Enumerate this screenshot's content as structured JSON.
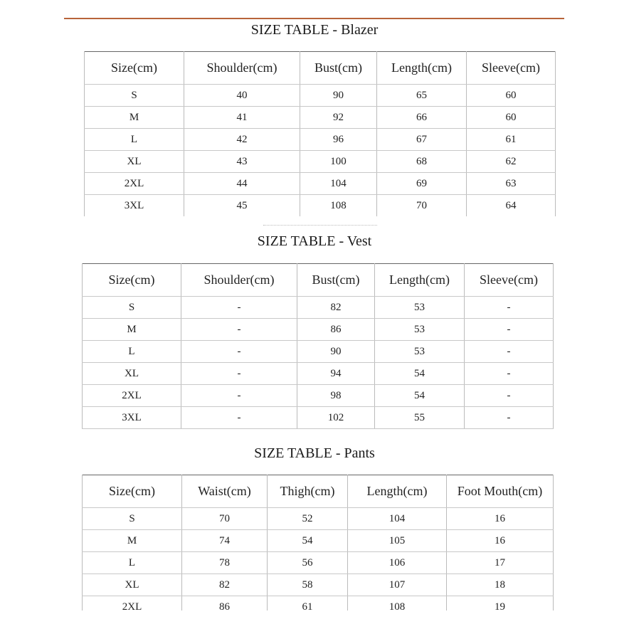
{
  "tables": [
    {
      "title": "SIZE TABLE - Blazer",
      "headers": [
        "Size(cm)",
        "Shoulder(cm)",
        "Bust(cm)",
        "Length(cm)",
        "Sleeve(cm)"
      ],
      "rows": [
        [
          "S",
          "40",
          "90",
          "65",
          "60"
        ],
        [
          "M",
          "41",
          "92",
          "66",
          "60"
        ],
        [
          "L",
          "42",
          "96",
          "67",
          "61"
        ],
        [
          "XL",
          "43",
          "100",
          "68",
          "62"
        ],
        [
          "2XL",
          "44",
          "104",
          "69",
          "63"
        ],
        [
          "3XL",
          "45",
          "108",
          "70",
          "64"
        ]
      ]
    },
    {
      "title": "SIZE TABLE - Vest",
      "headers": [
        "Size(cm)",
        "Shoulder(cm)",
        "Bust(cm)",
        "Length(cm)",
        "Sleeve(cm)"
      ],
      "rows": [
        [
          "S",
          "-",
          "82",
          "53",
          "-"
        ],
        [
          "M",
          "-",
          "86",
          "53",
          "-"
        ],
        [
          "L",
          "-",
          "90",
          "53",
          "-"
        ],
        [
          "XL",
          "-",
          "94",
          "54",
          "-"
        ],
        [
          "2XL",
          "-",
          "98",
          "54",
          "-"
        ],
        [
          "3XL",
          "-",
          "102",
          "55",
          "-"
        ]
      ]
    },
    {
      "title": "SIZE TABLE - Pants",
      "headers": [
        "Size(cm)",
        "Waist(cm)",
        "Thigh(cm)",
        "Length(cm)",
        "Foot Mouth(cm)"
      ],
      "rows": [
        [
          "S",
          "70",
          "52",
          "104",
          "16"
        ],
        [
          "M",
          "74",
          "54",
          "105",
          "16"
        ],
        [
          "L",
          "78",
          "56",
          "106",
          "17"
        ],
        [
          "XL",
          "82",
          "58",
          "107",
          "18"
        ],
        [
          "2XL",
          "86",
          "61",
          "108",
          "19"
        ]
      ]
    }
  ],
  "colors": {
    "rule": "#b8643a"
  }
}
